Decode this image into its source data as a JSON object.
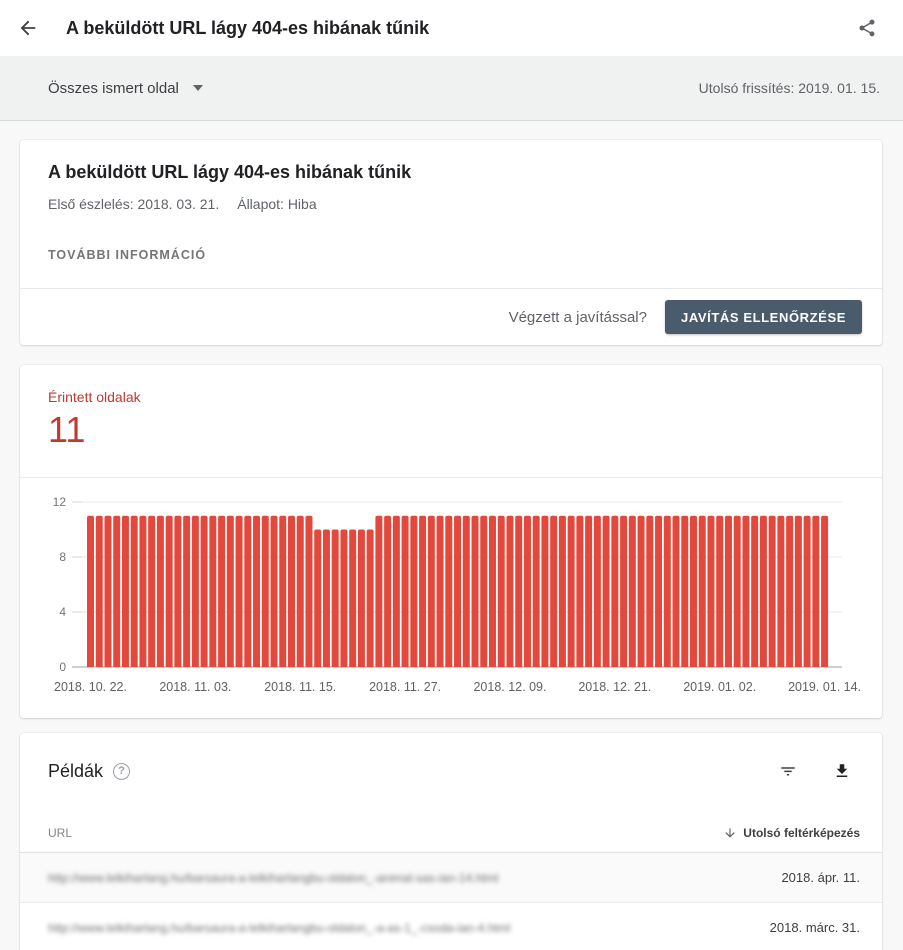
{
  "header": {
    "title": "A beküldött URL lágy 404-es hibának tűnik"
  },
  "filter_bar": {
    "scope_label": "Összes ismert oldal",
    "last_updated": "Utolsó frissítés: 2019. 01. 15."
  },
  "issue_card": {
    "title": "A beküldött URL lágy 404-es hibának tűnik",
    "first_detected": "Első észlelés: 2018. 03. 21.",
    "status": "Állapot: Hiba",
    "learn_more": "TOVÁBBI INFORMÁCIÓ",
    "fix_question": "Végzett a javítással?",
    "validate_button": "JAVÍTÁS ELLENŐRZÉSE"
  },
  "chart_card": {
    "metric_label": "Érintett oldalak",
    "metric_value": "11"
  },
  "chart_data": {
    "type": "bar",
    "title": "Érintett oldalak",
    "xlabel": "",
    "ylabel": "",
    "ylim": [
      0,
      12
    ],
    "yticks": [
      0,
      4,
      8,
      12
    ],
    "grid": true,
    "bar_color": "#e2493c",
    "start_date": "2018. 10. 22.",
    "end_date": "2019. 01. 14.",
    "xtick_labels": [
      "2018. 10. 22.",
      "2018. 11. 03.",
      "2018. 11. 15.",
      "2018. 11. 27.",
      "2018. 12. 09.",
      "2018. 12. 21.",
      "2019. 01. 02.",
      "2019. 01. 14."
    ],
    "xtick_indices": [
      0,
      12,
      24,
      36,
      48,
      60,
      72,
      84
    ],
    "values": [
      11,
      11,
      11,
      11,
      11,
      11,
      11,
      11,
      11,
      11,
      11,
      11,
      11,
      11,
      11,
      11,
      11,
      11,
      11,
      11,
      11,
      11,
      11,
      11,
      11,
      11,
      10,
      10,
      10,
      10,
      10,
      10,
      10,
      11,
      11,
      11,
      11,
      11,
      11,
      11,
      11,
      11,
      11,
      11,
      11,
      11,
      11,
      11,
      11,
      11,
      11,
      11,
      11,
      11,
      11,
      11,
      11,
      11,
      11,
      11,
      11,
      11,
      11,
      11,
      11,
      11,
      11,
      11,
      11,
      11,
      11,
      11,
      11,
      11,
      11,
      11,
      11,
      11,
      11,
      11,
      11,
      11,
      11,
      11,
      11
    ]
  },
  "examples_card": {
    "title": "Példák",
    "help_icon": "help-circle",
    "filter_icon": "filter-funnel",
    "download_icon": "download-arrow",
    "table": {
      "url_header": "URL",
      "sort_icon": "arrow-downward",
      "sort_header": "Utolsó feltérképezés",
      "rows": [
        {
          "url": "http://www.lelkiharlang.hu/barsaura-a-lelkiharlangbu-oldalon_-animal-sas-ian-14.html",
          "last_crawled": "2018. ápr. 11."
        },
        {
          "url": "http://www.lelkiharlang.hu/barsaura-a-lelkiharlangbu-oldalon_-a-as-1_-csoda-ian-4.html",
          "last_crawled": "2018. márc. 31."
        }
      ]
    }
  },
  "colors": {
    "metric_red": "#bf3a2f",
    "bar_red": "#e2493c",
    "button_slate": "#4a5b6b",
    "band_gray": "#f0f1f1"
  }
}
